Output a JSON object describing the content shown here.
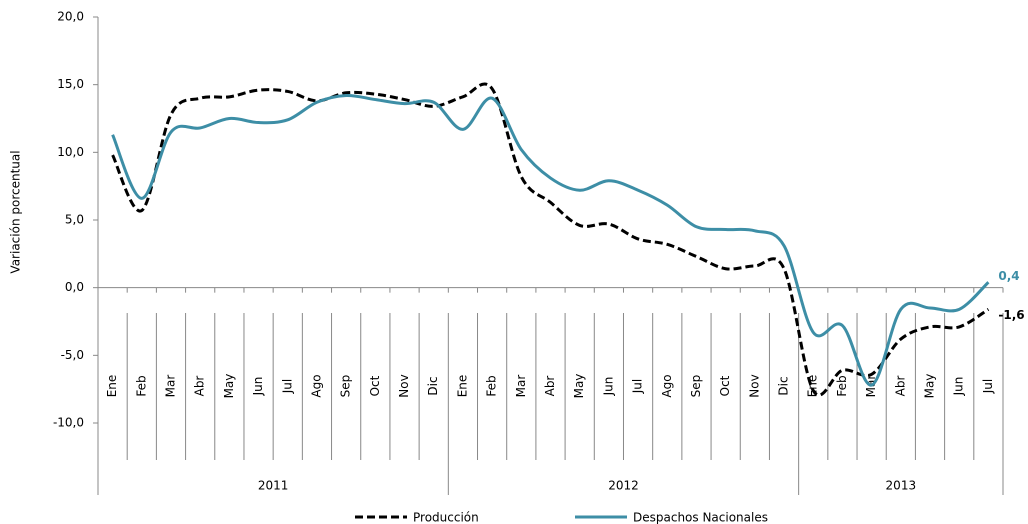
{
  "chart_data": {
    "type": "line",
    "y_label": "Variación porcentual",
    "groups": [
      {
        "name": "2011",
        "categories": [
          "Ene",
          "Feb",
          "Mar",
          "Abr",
          "May",
          "Jun",
          "Jul",
          "Ago",
          "Sep",
          "Oct",
          "Nov",
          "Dic"
        ]
      },
      {
        "name": "2012",
        "categories": [
          "Ene",
          "Feb",
          "Mar",
          "Abr",
          "May",
          "Jun",
          "Jul",
          "Ago",
          "Sep",
          "Oct",
          "Nov",
          "Dic"
        ]
      },
      {
        "name": "2013",
        "categories": [
          "Ene",
          "Feb",
          "Mar",
          "Abr",
          "May",
          "Jun",
          "Jul"
        ]
      }
    ],
    "ylim": [
      -10,
      20
    ],
    "yticks": [
      {
        "value": -10,
        "label": "-10,0"
      },
      {
        "value": -5,
        "label": "-5,0"
      },
      {
        "value": 0,
        "label": "0,0"
      },
      {
        "value": 5,
        "label": "5,0"
      },
      {
        "value": 10,
        "label": "10,0"
      },
      {
        "value": 15,
        "label": "15,0"
      },
      {
        "value": 20,
        "label": "20,0"
      }
    ],
    "series": [
      {
        "name": "Producción",
        "color": "#000000",
        "dashed": true,
        "values": [
          9.8,
          5.7,
          12.8,
          14.0,
          14.1,
          14.6,
          14.5,
          13.8,
          14.4,
          14.3,
          13.9,
          13.4,
          14.1,
          14.7,
          8.2,
          6.3,
          4.6,
          4.7,
          3.6,
          3.2,
          2.3,
          1.4,
          1.6,
          1.4,
          -7.6,
          -6.1,
          -6.4,
          -3.8,
          -2.9,
          -2.9,
          -1.6
        ],
        "value_labels": [
          null,
          null,
          null,
          null,
          null,
          null,
          null,
          null,
          null,
          null,
          null,
          null,
          null,
          null,
          null,
          null,
          null,
          null,
          null,
          null,
          null,
          null,
          null,
          null,
          null,
          null,
          null,
          null,
          null,
          null,
          "-1,6"
        ]
      },
      {
        "name": "Despachos Nacionales",
        "color": "#3d8ea6",
        "dashed": false,
        "values": [
          11.3,
          6.6,
          11.5,
          11.8,
          12.5,
          12.2,
          12.4,
          13.7,
          14.2,
          13.9,
          13.6,
          13.7,
          11.7,
          14.0,
          10.2,
          8.1,
          7.2,
          7.9,
          7.2,
          6.1,
          4.5,
          4.3,
          4.2,
          3.1,
          -3.3,
          -2.8,
          -7.2,
          -1.6,
          -1.5,
          -1.6,
          0.4
        ],
        "value_labels": [
          null,
          null,
          null,
          null,
          null,
          null,
          null,
          null,
          null,
          null,
          null,
          null,
          null,
          null,
          null,
          null,
          null,
          null,
          null,
          null,
          null,
          null,
          null,
          null,
          null,
          null,
          null,
          null,
          null,
          null,
          "0,4"
        ]
      }
    ]
  }
}
